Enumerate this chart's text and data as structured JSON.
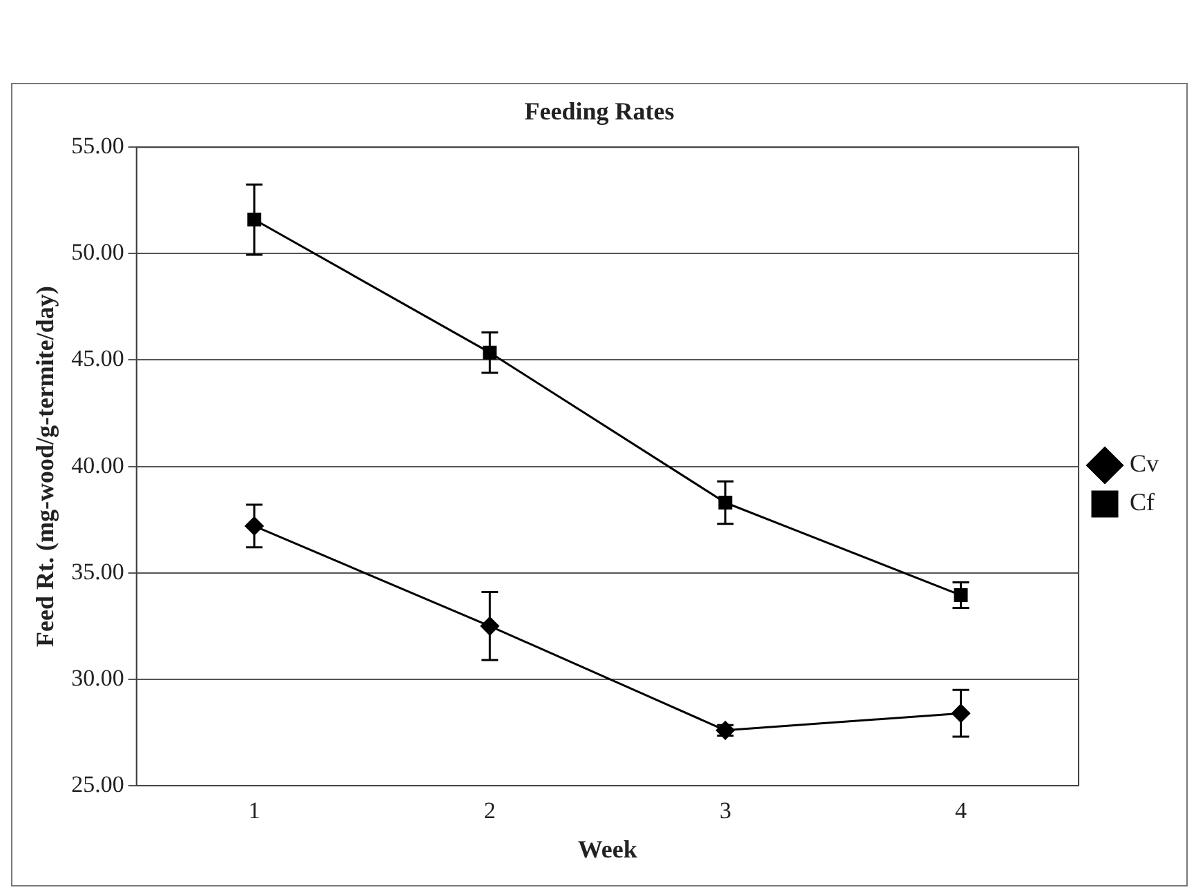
{
  "chart_data": {
    "type": "line",
    "title": "Feeding Rates",
    "xlabel": "Week",
    "ylabel": "Feed Rt. (mg-wood/g-termite/day)",
    "categories": [
      "1",
      "2",
      "3",
      "4"
    ],
    "series": [
      {
        "name": "Cv",
        "color": "#000000",
        "marker": "diamond",
        "values": [
          37.2,
          32.5,
          27.6,
          28.4
        ],
        "errors": [
          1.0,
          1.6,
          0.25,
          1.1
        ]
      },
      {
        "name": "Cf",
        "color": "#000000",
        "marker": "square",
        "values": [
          51.6,
          45.35,
          38.3,
          33.95
        ],
        "errors": [
          1.65,
          0.95,
          1.0,
          0.6
        ]
      }
    ],
    "ylim": [
      25,
      55
    ],
    "yticks": [
      {
        "value": 25,
        "label": "25.00"
      },
      {
        "value": 30,
        "label": "30.00"
      },
      {
        "value": 35,
        "label": "35.00"
      },
      {
        "value": 40,
        "label": "40.00"
      },
      {
        "value": 45,
        "label": "45.00"
      },
      {
        "value": 50,
        "label": "50.00"
      },
      {
        "value": 55,
        "label": "55.00"
      }
    ],
    "grid": "y",
    "legend": "right",
    "line_style": "solid"
  }
}
